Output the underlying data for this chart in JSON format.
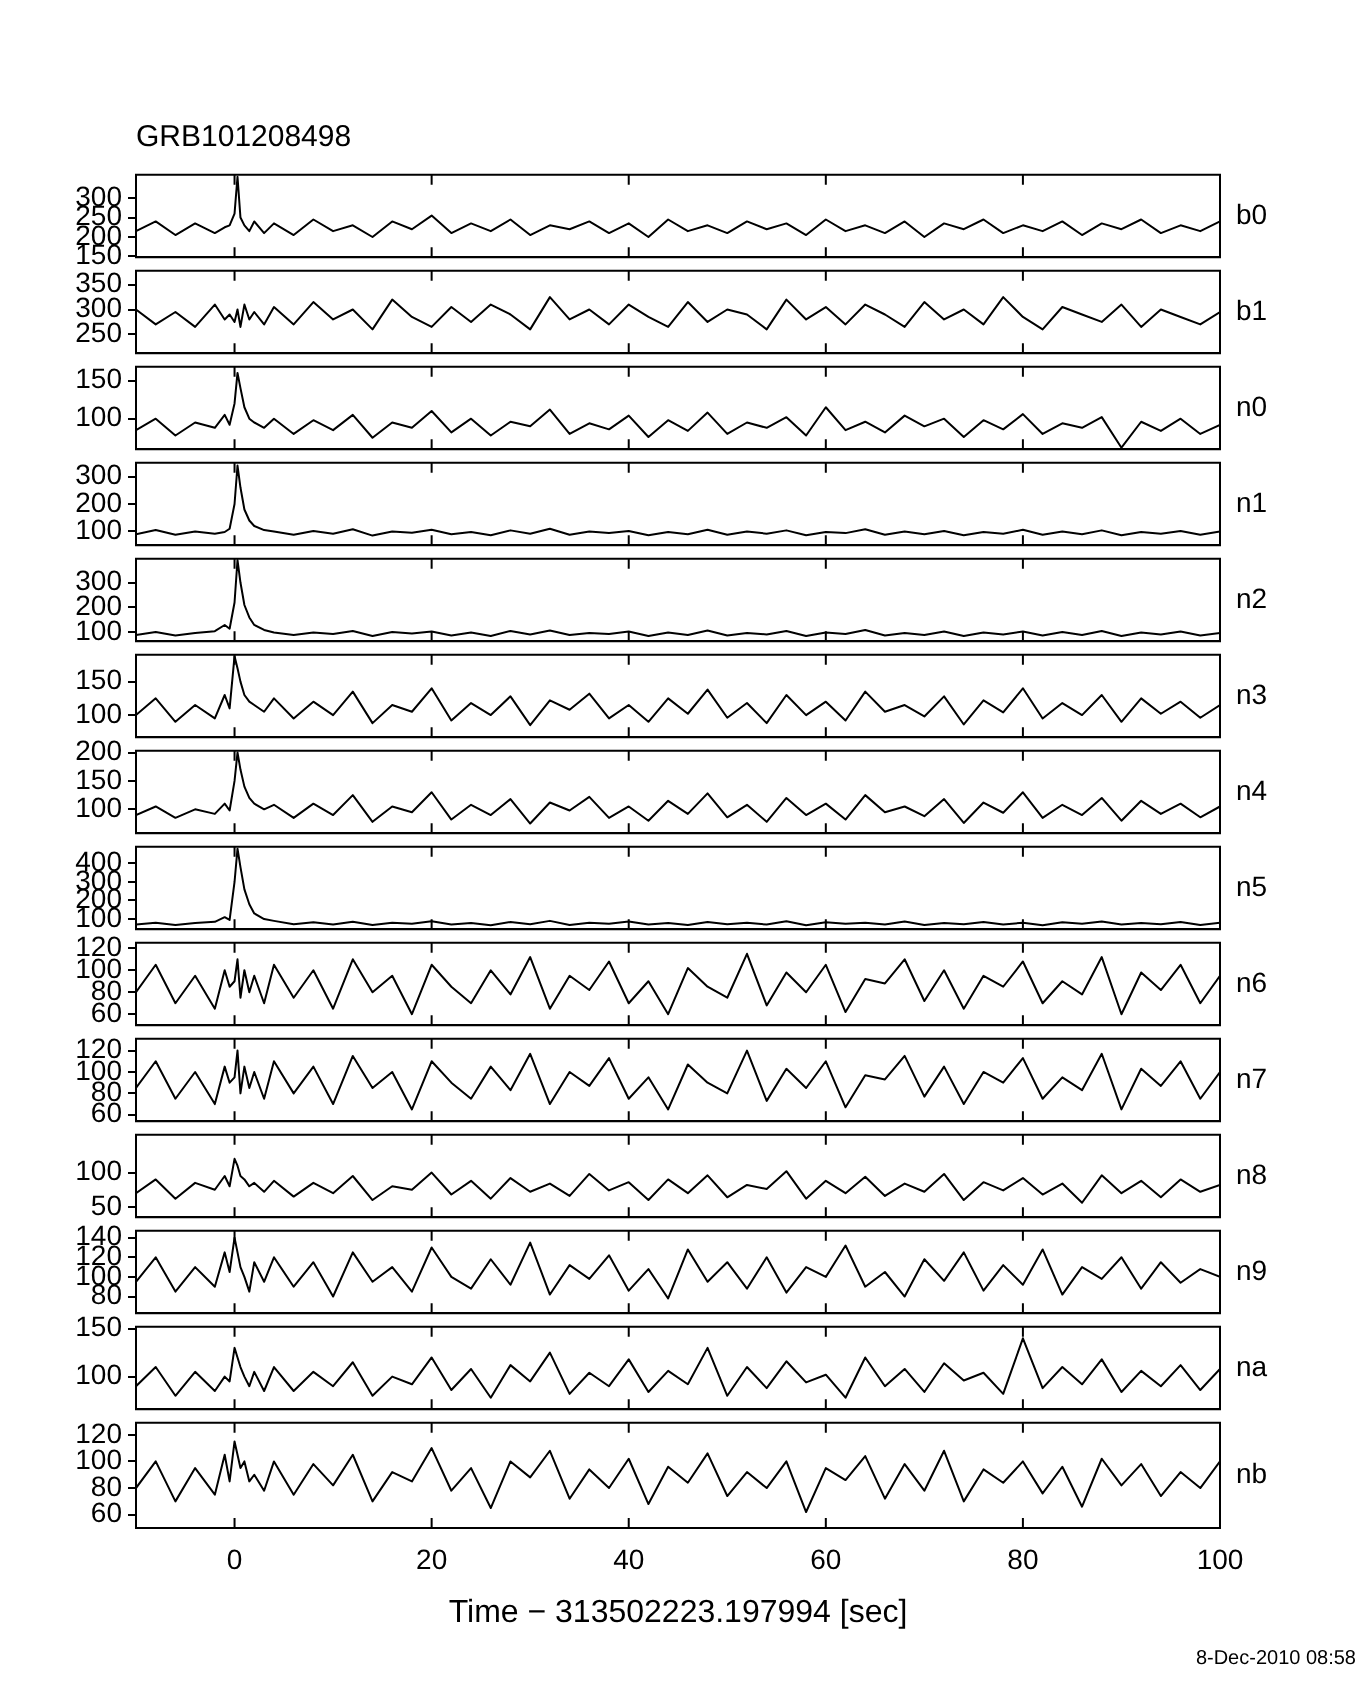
{
  "chart_data": [
    {
      "type": "line",
      "title": "GRB101208498",
      "tick_labels": "y",
      "xlim": [
        -10,
        100
      ],
      "xticks": [
        0,
        20,
        40,
        60,
        80,
        100
      ],
      "ylim": [
        148,
        360
      ],
      "yticks": [
        150,
        200,
        250,
        300
      ],
      "x": [
        -10,
        -8,
        -6,
        -4,
        -2,
        -1,
        -0.5,
        0,
        0.3,
        0.6,
        1,
        1.5,
        2,
        3,
        4,
        6,
        8,
        10,
        12,
        14,
        16,
        18,
        20,
        22,
        24,
        26,
        28,
        30,
        32,
        34,
        36,
        38,
        40,
        42,
        44,
        46,
        48,
        50,
        52,
        54,
        56,
        58,
        60,
        62,
        64,
        66,
        68,
        70,
        72,
        74,
        76,
        78,
        80,
        82,
        84,
        86,
        88,
        90,
        92,
        94,
        96,
        98,
        100
      ],
      "series": [
        {
          "name": "b0",
          "color": "#000000",
          "values": [
            215,
            240,
            205,
            235,
            210,
            225,
            230,
            260,
            355,
            250,
            230,
            215,
            240,
            210,
            235,
            205,
            245,
            215,
            230,
            200,
            240,
            220,
            255,
            210,
            235,
            215,
            245,
            205,
            230,
            220,
            240,
            210,
            235,
            200,
            245,
            215,
            230,
            210,
            240,
            220,
            235,
            205,
            245,
            215,
            230,
            210,
            240,
            200,
            235,
            220,
            245,
            210,
            230,
            215,
            240,
            205,
            235,
            220,
            245,
            210,
            230,
            215,
            240
          ]
        }
      ]
    },
    {
      "type": "line",
      "tick_labels": "y",
      "xlim": [
        -10,
        100
      ],
      "xticks": [
        0,
        20,
        40,
        60,
        80,
        100
      ],
      "ylim": [
        212,
        378
      ],
      "yticks": [
        250,
        300,
        350
      ],
      "x": [
        -10,
        -8,
        -6,
        -4,
        -2,
        -1,
        -0.5,
        0,
        0.3,
        0.6,
        1,
        1.5,
        2,
        3,
        4,
        6,
        8,
        10,
        12,
        14,
        16,
        18,
        20,
        22,
        24,
        26,
        28,
        30,
        32,
        34,
        36,
        38,
        40,
        42,
        44,
        46,
        48,
        50,
        52,
        54,
        56,
        58,
        60,
        62,
        64,
        66,
        68,
        70,
        72,
        74,
        76,
        78,
        80,
        82,
        84,
        86,
        88,
        90,
        92,
        94,
        96,
        98,
        100
      ],
      "series": [
        {
          "name": "b1",
          "color": "#000000",
          "values": [
            300,
            270,
            295,
            265,
            310,
            280,
            290,
            275,
            300,
            265,
            310,
            280,
            295,
            270,
            305,
            270,
            315,
            280,
            300,
            260,
            320,
            285,
            265,
            305,
            275,
            310,
            290,
            260,
            325,
            280,
            300,
            270,
            310,
            285,
            265,
            315,
            275,
            300,
            290,
            260,
            320,
            280,
            305,
            270,
            310,
            290,
            265,
            315,
            280,
            300,
            270,
            325,
            285,
            260,
            305,
            290,
            275,
            310,
            265,
            300,
            285,
            270,
            295
          ]
        }
      ]
    },
    {
      "type": "line",
      "tick_labels": "y",
      "xlim": [
        -10,
        100
      ],
      "xticks": [
        0,
        20,
        40,
        60,
        80,
        100
      ],
      "ylim": [
        60,
        168
      ],
      "yticks": [
        100,
        150
      ],
      "x": [
        -10,
        -8,
        -6,
        -4,
        -2,
        -1,
        -0.5,
        0,
        0.3,
        0.6,
        1,
        1.5,
        2,
        3,
        4,
        6,
        8,
        10,
        12,
        14,
        16,
        18,
        20,
        22,
        24,
        26,
        28,
        30,
        32,
        34,
        36,
        38,
        40,
        42,
        44,
        46,
        48,
        50,
        52,
        54,
        56,
        58,
        60,
        62,
        64,
        66,
        68,
        70,
        72,
        74,
        76,
        78,
        80,
        82,
        84,
        86,
        88,
        90,
        92,
        94,
        96,
        98,
        100
      ],
      "series": [
        {
          "name": "n0",
          "color": "#000000",
          "values": [
            85,
            100,
            78,
            95,
            88,
            105,
            92,
            120,
            160,
            140,
            115,
            100,
            95,
            88,
            100,
            80,
            98,
            85,
            105,
            75,
            95,
            88,
            110,
            82,
            100,
            78,
            96,
            90,
            112,
            80,
            94,
            86,
            104,
            76,
            98,
            84,
            108,
            80,
            95,
            88,
            102,
            78,
            115,
            85,
            96,
            82,
            104,
            90,
            100,
            76,
            98,
            86,
            106,
            80,
            94,
            88,
            102,
            62,
            96,
            84,
            100,
            80,
            92
          ]
        }
      ]
    },
    {
      "type": "line",
      "tick_labels": "y",
      "xlim": [
        -10,
        100
      ],
      "xticks": [
        0,
        20,
        40,
        60,
        80,
        100
      ],
      "ylim": [
        50,
        350
      ],
      "yticks": [
        100,
        200,
        300
      ],
      "x": [
        -10,
        -8,
        -6,
        -4,
        -2,
        -1,
        -0.5,
        0,
        0.3,
        0.6,
        1,
        1.5,
        2,
        3,
        4,
        6,
        8,
        10,
        12,
        14,
        16,
        18,
        20,
        22,
        24,
        26,
        28,
        30,
        32,
        34,
        36,
        38,
        40,
        42,
        44,
        46,
        48,
        50,
        52,
        54,
        56,
        58,
        60,
        62,
        64,
        66,
        68,
        70,
        72,
        74,
        76,
        78,
        80,
        82,
        84,
        86,
        88,
        90,
        92,
        94,
        96,
        98,
        100
      ],
      "series": [
        {
          "name": "n1",
          "color": "#000000",
          "values": [
            90,
            105,
            88,
            100,
            92,
            98,
            110,
            200,
            340,
            260,
            180,
            140,
            120,
            105,
            100,
            88,
            102,
            92,
            108,
            85,
            100,
            95,
            106,
            90,
            98,
            86,
            104,
            92,
            110,
            88,
            100,
            94,
            102,
            86,
            98,
            90,
            106,
            88,
            100,
            92,
            104,
            86,
            98,
            94,
            108,
            88,
            100,
            90,
            102,
            86,
            98,
            92,
            106,
            88,
            100,
            90,
            104,
            86,
            98,
            92,
            102,
            88,
            100
          ]
        }
      ]
    },
    {
      "type": "line",
      "tick_labels": "y",
      "xlim": [
        -10,
        100
      ],
      "xticks": [
        0,
        20,
        40,
        60,
        80,
        100
      ],
      "ylim": [
        65,
        395
      ],
      "yticks": [
        100,
        200,
        300
      ],
      "x": [
        -10,
        -8,
        -6,
        -4,
        -2,
        -1,
        -0.5,
        0,
        0.3,
        0.6,
        1,
        1.5,
        2,
        3,
        4,
        6,
        8,
        10,
        12,
        14,
        16,
        18,
        20,
        22,
        24,
        26,
        28,
        30,
        32,
        34,
        36,
        38,
        40,
        42,
        44,
        46,
        48,
        50,
        52,
        54,
        56,
        58,
        60,
        62,
        64,
        66,
        68,
        70,
        72,
        74,
        76,
        78,
        80,
        82,
        84,
        86,
        88,
        90,
        92,
        94,
        96,
        98,
        100
      ],
      "series": [
        {
          "name": "n2",
          "color": "#000000",
          "values": [
            90,
            102,
            88,
            98,
            105,
            130,
            115,
            220,
            390,
            300,
            210,
            160,
            130,
            110,
            100,
            90,
            100,
            94,
            106,
            86,
            102,
            96,
            104,
            88,
            100,
            86,
            106,
            92,
            108,
            90,
            98,
            94,
            104,
            86,
            100,
            90,
            108,
            88,
            98,
            92,
            106,
            86,
            100,
            94,
            110,
            88,
            98,
            90,
            104,
            86,
            100,
            92,
            104,
            88,
            102,
            90,
            106,
            86,
            100,
            92,
            104,
            88,
            98
          ]
        }
      ]
    },
    {
      "type": "line",
      "tick_labels": "y",
      "xlim": [
        -10,
        100
      ],
      "xticks": [
        0,
        20,
        40,
        60,
        80,
        100
      ],
      "ylim": [
        67,
        190
      ],
      "yticks": [
        100,
        150
      ],
      "x": [
        -10,
        -8,
        -6,
        -4,
        -2,
        -1,
        -0.5,
        0,
        0.3,
        0.6,
        1,
        1.5,
        2,
        3,
        4,
        6,
        8,
        10,
        12,
        14,
        16,
        18,
        20,
        22,
        24,
        26,
        28,
        30,
        32,
        34,
        36,
        38,
        40,
        42,
        44,
        46,
        48,
        50,
        52,
        54,
        56,
        58,
        60,
        62,
        64,
        66,
        68,
        70,
        72,
        74,
        76,
        78,
        80,
        82,
        84,
        86,
        88,
        90,
        92,
        94,
        96,
        98,
        100
      ],
      "series": [
        {
          "name": "n3",
          "color": "#000000",
          "values": [
            100,
            125,
            90,
            115,
            95,
            130,
            110,
            188,
            170,
            150,
            130,
            120,
            115,
            105,
            125,
            95,
            120,
            100,
            135,
            88,
            115,
            105,
            140,
            92,
            118,
            100,
            128,
            85,
            122,
            108,
            132,
            95,
            115,
            90,
            125,
            102,
            138,
            96,
            118,
            88,
            130,
            100,
            120,
            92,
            135,
            105,
            115,
            98,
            128,
            86,
            122,
            104,
            140,
            95,
            118,
            100,
            130,
            90,
            125,
            102,
            120,
            96,
            115
          ]
        }
      ]
    },
    {
      "type": "line",
      "tick_labels": "y",
      "xlim": [
        -10,
        100
      ],
      "xticks": [
        0,
        20,
        40,
        60,
        80,
        100
      ],
      "ylim": [
        58,
        203
      ],
      "yticks": [
        100,
        150,
        200
      ],
      "x": [
        -10,
        -8,
        -6,
        -4,
        -2,
        -1,
        -0.5,
        0,
        0.3,
        0.6,
        1,
        1.5,
        2,
        3,
        4,
        6,
        8,
        10,
        12,
        14,
        16,
        18,
        20,
        22,
        24,
        26,
        28,
        30,
        32,
        34,
        36,
        38,
        40,
        42,
        44,
        46,
        48,
        50,
        52,
        54,
        56,
        58,
        60,
        62,
        64,
        66,
        68,
        70,
        72,
        74,
        76,
        78,
        80,
        82,
        84,
        86,
        88,
        90,
        92,
        94,
        96,
        98,
        100
      ],
      "series": [
        {
          "name": "n4",
          "color": "#000000",
          "values": [
            90,
            105,
            85,
            100,
            92,
            110,
            98,
            150,
            200,
            170,
            140,
            120,
            110,
            100,
            108,
            85,
            110,
            90,
            125,
            78,
            105,
            95,
            130,
            82,
            108,
            90,
            118,
            75,
            112,
            98,
            122,
            85,
            105,
            80,
            115,
            92,
            128,
            86,
            108,
            78,
            120,
            90,
            110,
            82,
            125,
            95,
            105,
            88,
            118,
            76,
            112,
            94,
            130,
            85,
            108,
            90,
            120,
            80,
            115,
            92,
            110,
            86,
            105
          ]
        }
      ]
    },
    {
      "type": "line",
      "tick_labels": "y",
      "xlim": [
        -10,
        100
      ],
      "xticks": [
        0,
        20,
        40,
        60,
        80,
        100
      ],
      "ylim": [
        45,
        490
      ],
      "yticks": [
        100,
        200,
        300,
        400
      ],
      "x": [
        -10,
        -8,
        -6,
        -4,
        -2,
        -1,
        -0.5,
        0,
        0.3,
        0.6,
        1,
        1.5,
        2,
        3,
        4,
        6,
        8,
        10,
        12,
        14,
        16,
        18,
        20,
        22,
        24,
        26,
        28,
        30,
        32,
        34,
        36,
        38,
        40,
        42,
        44,
        46,
        48,
        50,
        52,
        54,
        56,
        58,
        60,
        62,
        64,
        66,
        68,
        70,
        72,
        74,
        76,
        78,
        80,
        82,
        84,
        86,
        88,
        90,
        92,
        94,
        96,
        98,
        100
      ],
      "series": [
        {
          "name": "n5",
          "color": "#000000",
          "values": [
            70,
            80,
            68,
            78,
            85,
            110,
            95,
            300,
            480,
            380,
            260,
            180,
            130,
            100,
            90,
            72,
            82,
            70,
            85,
            68,
            80,
            75,
            88,
            70,
            78,
            66,
            84,
            72,
            90,
            68,
            80,
            74,
            86,
            70,
            78,
            68,
            84,
            72,
            80,
            70,
            88,
            66,
            82,
            74,
            80,
            70,
            86,
            68,
            78,
            72,
            84,
            70,
            80,
            66,
            82,
            74,
            86,
            70,
            78,
            72,
            84,
            68,
            80
          ]
        }
      ]
    },
    {
      "type": "line",
      "tick_labels": "y",
      "xlim": [
        -10,
        100
      ],
      "xticks": [
        0,
        20,
        40,
        60,
        80,
        100
      ],
      "ylim": [
        50,
        125
      ],
      "yticks": [
        60,
        80,
        100,
        120
      ],
      "x": [
        -10,
        -8,
        -6,
        -4,
        -2,
        -1,
        -0.5,
        0,
        0.3,
        0.6,
        1,
        1.5,
        2,
        3,
        4,
        6,
        8,
        10,
        12,
        14,
        16,
        18,
        20,
        22,
        24,
        26,
        28,
        30,
        32,
        34,
        36,
        38,
        40,
        42,
        44,
        46,
        48,
        50,
        52,
        54,
        56,
        58,
        60,
        62,
        64,
        66,
        68,
        70,
        72,
        74,
        76,
        78,
        80,
        82,
        84,
        86,
        88,
        90,
        92,
        94,
        96,
        98,
        100
      ],
      "series": [
        {
          "name": "n6",
          "color": "#000000",
          "values": [
            80,
            105,
            70,
            95,
            65,
            100,
            85,
            90,
            110,
            75,
            100,
            80,
            95,
            70,
            105,
            75,
            100,
            65,
            110,
            80,
            95,
            60,
            105,
            85,
            70,
            100,
            78,
            112,
            65,
            95,
            82,
            108,
            70,
            90,
            60,
            102,
            85,
            75,
            115,
            68,
            98,
            80,
            105,
            62,
            92,
            88,
            110,
            72,
            100,
            65,
            95,
            85,
            108,
            70,
            90,
            78,
            112,
            60,
            98,
            82,
            105,
            70,
            95
          ]
        }
      ]
    },
    {
      "type": "line",
      "tick_labels": "y",
      "xlim": [
        -10,
        100
      ],
      "xticks": [
        0,
        20,
        40,
        60,
        80,
        100
      ],
      "ylim": [
        54,
        131
      ],
      "yticks": [
        60,
        80,
        100,
        120
      ],
      "x": [
        -10,
        -8,
        -6,
        -4,
        -2,
        -1,
        -0.5,
        0,
        0.3,
        0.6,
        1,
        1.5,
        2,
        3,
        4,
        6,
        8,
        10,
        12,
        14,
        16,
        18,
        20,
        22,
        24,
        26,
        28,
        30,
        32,
        34,
        36,
        38,
        40,
        42,
        44,
        46,
        48,
        50,
        52,
        54,
        56,
        58,
        60,
        62,
        64,
        66,
        68,
        70,
        72,
        74,
        76,
        78,
        80,
        82,
        84,
        86,
        88,
        90,
        92,
        94,
        96,
        98,
        100
      ],
      "series": [
        {
          "name": "n7",
          "color": "#000000",
          "values": [
            85,
            110,
            75,
            100,
            70,
            105,
            90,
            95,
            120,
            80,
            105,
            85,
            100,
            75,
            110,
            80,
            105,
            70,
            115,
            85,
            100,
            65,
            110,
            90,
            75,
            105,
            83,
            117,
            70,
            100,
            87,
            113,
            75,
            95,
            65,
            107,
            90,
            80,
            120,
            73,
            103,
            85,
            110,
            67,
            97,
            93,
            115,
            77,
            105,
            70,
            100,
            90,
            113,
            75,
            95,
            83,
            117,
            65,
            103,
            87,
            110,
            75,
            100
          ]
        }
      ]
    },
    {
      "type": "line",
      "tick_labels": "y",
      "xlim": [
        -10,
        100
      ],
      "xticks": [
        0,
        20,
        40,
        60,
        80,
        100
      ],
      "ylim": [
        35,
        155
      ],
      "yticks": [
        50,
        100
      ],
      "x": [
        -10,
        -8,
        -6,
        -4,
        -2,
        -1,
        -0.5,
        0,
        0.3,
        0.6,
        1,
        1.5,
        2,
        3,
        4,
        6,
        8,
        10,
        12,
        14,
        16,
        18,
        20,
        22,
        24,
        26,
        28,
        30,
        32,
        34,
        36,
        38,
        40,
        42,
        44,
        46,
        48,
        50,
        52,
        54,
        56,
        58,
        60,
        62,
        64,
        66,
        68,
        70,
        72,
        74,
        76,
        78,
        80,
        82,
        84,
        86,
        88,
        90,
        92,
        94,
        96,
        98,
        100
      ],
      "series": [
        {
          "name": "n8",
          "color": "#000000",
          "values": [
            70,
            90,
            62,
            85,
            75,
            95,
            80,
            120,
            110,
            95,
            90,
            80,
            85,
            72,
            88,
            65,
            85,
            70,
            95,
            60,
            80,
            75,
            100,
            68,
            88,
            62,
            92,
            72,
            84,
            66,
            98,
            74,
            86,
            60,
            90,
            70,
            96,
            64,
            82,
            76,
            102,
            62,
            88,
            70,
            94,
            66,
            84,
            72,
            98,
            60,
            86,
            74,
            92,
            68,
            84,
            56,
            96,
            70,
            88,
            64,
            90,
            72,
            82
          ]
        }
      ]
    },
    {
      "type": "line",
      "tick_labels": "y",
      "xlim": [
        -10,
        100
      ],
      "xticks": [
        0,
        20,
        40,
        60,
        80,
        100
      ],
      "ylim": [
        63,
        147
      ],
      "yticks": [
        80,
        100,
        120,
        140
      ],
      "x": [
        -10,
        -8,
        -6,
        -4,
        -2,
        -1,
        -0.5,
        0,
        0.3,
        0.6,
        1,
        1.5,
        2,
        3,
        4,
        6,
        8,
        10,
        12,
        14,
        16,
        18,
        20,
        22,
        24,
        26,
        28,
        30,
        32,
        34,
        36,
        38,
        40,
        42,
        44,
        46,
        48,
        50,
        52,
        54,
        56,
        58,
        60,
        62,
        64,
        66,
        68,
        70,
        72,
        74,
        76,
        78,
        80,
        82,
        84,
        86,
        88,
        90,
        92,
        94,
        96,
        98,
        100
      ],
      "series": [
        {
          "name": "n9",
          "color": "#000000",
          "values": [
            95,
            120,
            85,
            110,
            90,
            125,
            105,
            140,
            125,
            110,
            100,
            85,
            115,
            95,
            120,
            90,
            115,
            80,
            125,
            95,
            110,
            85,
            130,
            100,
            88,
            118,
            92,
            135,
            82,
            112,
            98,
            122,
            86,
            108,
            78,
            128,
            95,
            115,
            88,
            120,
            84,
            110,
            100,
            132,
            90,
            105,
            80,
            118,
            96,
            125,
            86,
            112,
            92,
            128,
            82,
            110,
            98,
            120,
            88,
            115,
            94,
            108,
            100
          ]
        }
      ]
    },
    {
      "type": "line",
      "tick_labels": "y",
      "xlim": [
        -10,
        100
      ],
      "xticks": [
        0,
        20,
        40,
        60,
        80,
        100
      ],
      "ylim": [
        66,
        152
      ],
      "yticks": [
        100,
        150
      ],
      "x": [
        -10,
        -8,
        -6,
        -4,
        -2,
        -1,
        -0.5,
        0,
        0.3,
        0.6,
        1,
        1.5,
        2,
        3,
        4,
        6,
        8,
        10,
        12,
        14,
        16,
        18,
        20,
        22,
        24,
        26,
        28,
        30,
        32,
        34,
        36,
        38,
        40,
        42,
        44,
        46,
        48,
        50,
        52,
        54,
        56,
        58,
        60,
        62,
        64,
        66,
        68,
        70,
        72,
        74,
        76,
        78,
        80,
        82,
        84,
        86,
        88,
        90,
        92,
        94,
        96,
        98,
        100
      ],
      "series": [
        {
          "name": "na",
          "color": "#000000",
          "values": [
            90,
            110,
            80,
            105,
            85,
            100,
            95,
            130,
            120,
            110,
            100,
            90,
            105,
            85,
            110,
            85,
            105,
            90,
            115,
            80,
            100,
            92,
            120,
            86,
            108,
            78,
            112,
            95,
            125,
            82,
            104,
            90,
            118,
            84,
            106,
            92,
            130,
            80,
            110,
            88,
            116,
            94,
            102,
            78,
            120,
            90,
            108,
            84,
            114,
            96,
            104,
            82,
            140,
            88,
            110,
            92,
            118,
            84,
            106,
            90,
            112,
            86,
            108
          ]
        }
      ]
    },
    {
      "type": "line",
      "xlabel": "Time − 313502223.197994 [sec]",
      "annotations": [
        "8-Dec-2010 08:58"
      ],
      "xlim": [
        -10,
        100
      ],
      "xticks": [
        0,
        20,
        40,
        60,
        80,
        100
      ],
      "ylim": [
        50,
        129
      ],
      "yticks": [
        60,
        80,
        100,
        120
      ],
      "x": [
        -10,
        -8,
        -6,
        -4,
        -2,
        -1,
        -0.5,
        0,
        0.3,
        0.6,
        1,
        1.5,
        2,
        3,
        4,
        6,
        8,
        10,
        12,
        14,
        16,
        18,
        20,
        22,
        24,
        26,
        28,
        30,
        32,
        34,
        36,
        38,
        40,
        42,
        44,
        46,
        48,
        50,
        52,
        54,
        56,
        58,
        60,
        62,
        64,
        66,
        68,
        70,
        72,
        74,
        76,
        78,
        80,
        82,
        84,
        86,
        88,
        90,
        92,
        94,
        96,
        98,
        100
      ],
      "series": [
        {
          "name": "nb",
          "color": "#000000",
          "values": [
            80,
            100,
            70,
            95,
            75,
            105,
            85,
            115,
            105,
            95,
            100,
            85,
            90,
            78,
            100,
            75,
            98,
            82,
            105,
            70,
            92,
            85,
            110,
            78,
            95,
            65,
            100,
            88,
            108,
            72,
            94,
            80,
            102,
            68,
            96,
            84,
            106,
            74,
            92,
            80,
            100,
            62,
            95,
            86,
            104,
            72,
            98,
            78,
            108,
            70,
            94,
            84,
            100,
            76,
            96,
            66,
            102,
            82,
            98,
            74,
            92,
            80,
            100
          ]
        }
      ]
    }
  ]
}
